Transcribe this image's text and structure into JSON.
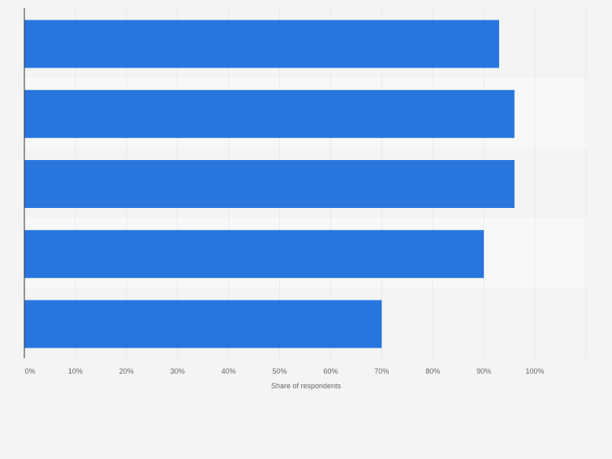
{
  "chart_data": {
    "type": "bar",
    "orientation": "horizontal",
    "categories": [
      "",
      "",
      "",
      "",
      ""
    ],
    "values": [
      93,
      96,
      96,
      90,
      70
    ],
    "x_unit": "%",
    "xlabel": "Share of respondents",
    "ylabel": "",
    "xlim": [
      0,
      110
    ],
    "xticks": [
      0,
      10,
      20,
      30,
      40,
      50,
      60,
      70,
      80,
      90,
      100
    ],
    "xtick_labels": [
      "0%",
      "10%",
      "20%",
      "30%",
      "40%",
      "50%",
      "60%",
      "70%",
      "80%",
      "90%",
      "100%"
    ],
    "grid": true,
    "legend": "none",
    "colors": {
      "bar": "#2876dd",
      "band_dark": "#f4f4f4",
      "band_light": "#f8f8f8",
      "grid": "#dcdcdc",
      "axis": "#333333",
      "tick_text": "#666666"
    }
  }
}
